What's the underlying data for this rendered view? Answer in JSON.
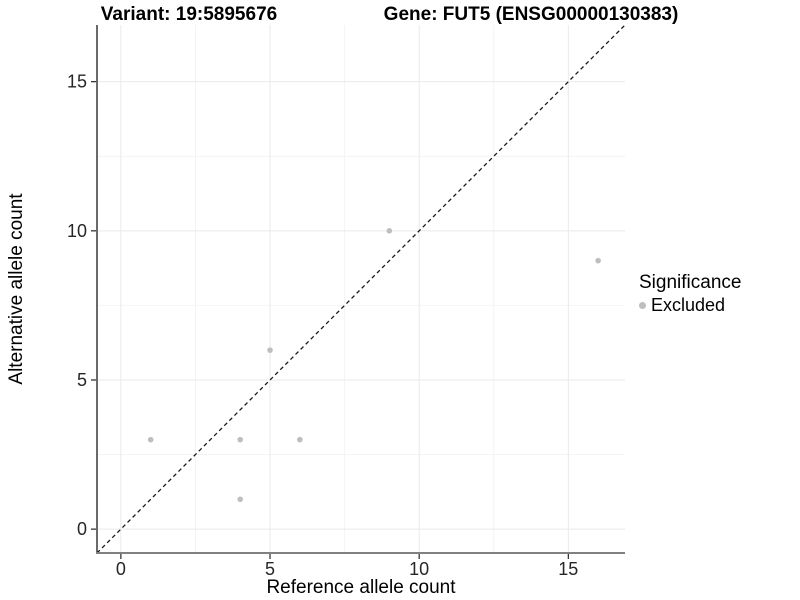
{
  "titles": {
    "variant": "Variant: 19:5895676",
    "gene": "Gene: FUT5 (ENSG00000130383)"
  },
  "chart_data": {
    "type": "scatter",
    "title": "Variant: 19:5895676 / Gene: FUT5 (ENSG00000130383)",
    "xlabel": "Reference allele count",
    "ylabel": "Alternative allele count",
    "xlim": [
      -0.8,
      16.9
    ],
    "ylim": [
      -0.8,
      16.9
    ],
    "x_ticks": [
      0,
      5,
      10,
      15
    ],
    "y_ticks": [
      0,
      5,
      10,
      15
    ],
    "x_minor_ticks": [
      2.5,
      7.5,
      12.5
    ],
    "y_minor_ticks": [
      2.5,
      7.5,
      12.5
    ],
    "grid": true,
    "series": [
      {
        "name": "Excluded",
        "color": "#bebebe",
        "points": [
          {
            "x": 1,
            "y": 3
          },
          {
            "x": 4,
            "y": 1
          },
          {
            "x": 4,
            "y": 3
          },
          {
            "x": 5,
            "y": 6
          },
          {
            "x": 6,
            "y": 3
          },
          {
            "x": 9,
            "y": 10
          },
          {
            "x": 16,
            "y": 9
          }
        ]
      }
    ],
    "reference_line": {
      "type": "identity",
      "style": "dashed",
      "color": "#1a1a1a"
    },
    "legend": {
      "title": "Significance",
      "position": "right",
      "items": [
        {
          "label": "Excluded",
          "color": "#bebebe"
        }
      ]
    }
  },
  "colors": {
    "background": "#ffffff",
    "grid_major": "#e9e9e9",
    "grid_minor": "#f4f4f4",
    "axis_line_left": "#1a1a1a",
    "axis_line_bottom": "#808080",
    "tick_text": "#262626",
    "point": "#bebebe"
  }
}
